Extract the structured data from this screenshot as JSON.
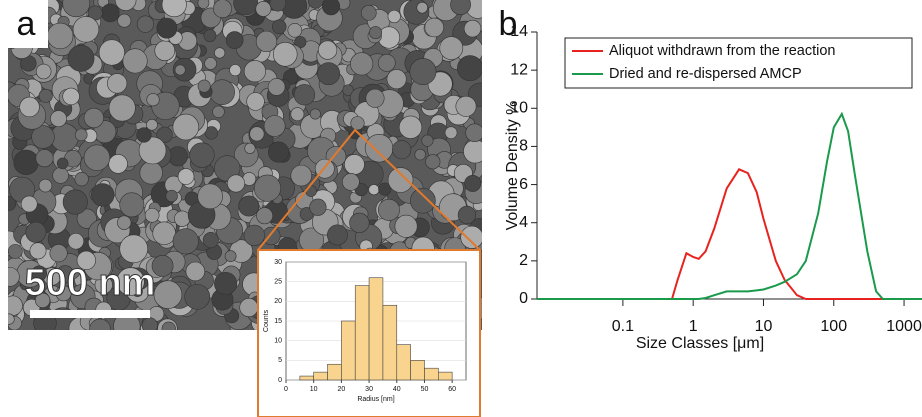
{
  "panel_labels": [
    "a",
    "b"
  ],
  "scale_bar_label": "500 nm",
  "chart_data": [
    {
      "type": "histogram",
      "xlabel": "Radius [nm]",
      "ylabel": "Counts",
      "color": "#f8d48f",
      "bins": [
        5,
        10,
        15,
        20,
        25,
        30,
        35,
        40,
        45,
        50,
        55,
        60
      ],
      "values": [
        1,
        2,
        4,
        15,
        24,
        26,
        19,
        9,
        5,
        3,
        2
      ],
      "xlim": [
        0,
        65
      ],
      "xticks": [
        0,
        10,
        20,
        30,
        40,
        50,
        60
      ],
      "ylim": [
        0,
        30
      ],
      "yticks": [
        0,
        5,
        10,
        15,
        20,
        25,
        30
      ]
    },
    {
      "type": "line",
      "xlabel": "Size Classes [μm]",
      "ylabel": "Volume Density %",
      "log_x": true,
      "legend": "top",
      "x": [
        0.006,
        0.3,
        0.5,
        0.6,
        0.8,
        1,
        1.2,
        1.5,
        2,
        3,
        4.5,
        6,
        8,
        10,
        15,
        20,
        30,
        40,
        60,
        80,
        100,
        130,
        160,
        200,
        300,
        400,
        500,
        1000,
        1800
      ],
      "series": [
        {
          "name": "Aliquot withdrawn from the reaction",
          "color": "#e8231f",
          "values": [
            0,
            0,
            0,
            1,
            2.4,
            2.2,
            2.1,
            2.5,
            3.7,
            5.8,
            6.8,
            6.6,
            5.6,
            4.2,
            2,
            1,
            0.2,
            0,
            0,
            0,
            0,
            0,
            0,
            0,
            0,
            0,
            0,
            0,
            0
          ]
        },
        {
          "name": "Dried and re-dispersed AMCP",
          "color": "#1b9a4c",
          "values": [
            0,
            0,
            0,
            0,
            0,
            0,
            0,
            0.05,
            0.2,
            0.4,
            0.4,
            0.4,
            0.45,
            0.5,
            0.7,
            0.9,
            1.3,
            2,
            4.5,
            7.2,
            9,
            9.7,
            8.8,
            6.5,
            2.5,
            0.4,
            0,
            0,
            0
          ]
        }
      ],
      "xlim": [
        0.006,
        1800
      ],
      "xticks": [
        0.1,
        1,
        10,
        100,
        1000
      ],
      "ylim": [
        0,
        14
      ],
      "yticks": [
        0,
        2,
        4,
        6,
        8,
        10,
        12,
        14
      ]
    }
  ]
}
